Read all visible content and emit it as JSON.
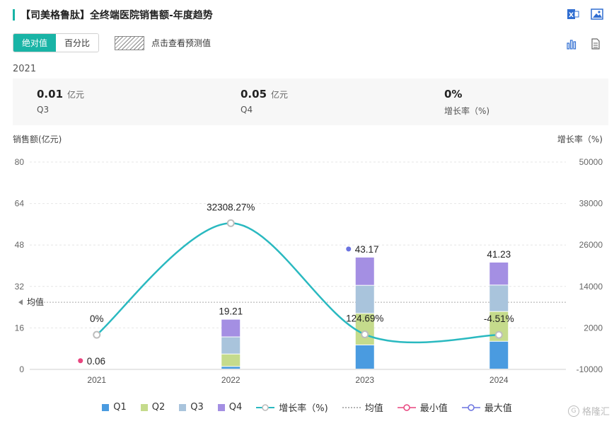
{
  "header": {
    "title": "【司美格鲁肽】全终端医院销售额-年度趋势"
  },
  "controls": {
    "absolute_label": "绝对值",
    "percent_label": "百分比",
    "forecast_label": "点击查看预测值"
  },
  "selected_year": "2021",
  "summary": {
    "value": {
      "number": "0.01",
      "unit": "亿元",
      "label": "Q3"
    },
    "quarter": {
      "number": "0.05",
      "unit": "亿元",
      "label": "Q4"
    },
    "growth": {
      "number": "0%",
      "label": "增长率（%)"
    }
  },
  "axis": {
    "left_title": "销售额(亿元)",
    "right_title": "增长率（%)"
  },
  "legend": {
    "q1": "Q1",
    "q2": "Q2",
    "q3": "Q3",
    "q4": "Q4",
    "growth": "增长率（%)",
    "avg": "均值",
    "min": "最小值",
    "max": "最大值"
  },
  "watermark": "格隆汇",
  "colors": {
    "accent": "#19b4a6",
    "q1": "#4a9be0",
    "q2": "#c5db8c",
    "q3": "#a9c4dc",
    "q4": "#a48fe3",
    "growth_line": "#2ab9c0",
    "min": "#e8457f",
    "max": "#6b73e0"
  },
  "chart_data": {
    "type": "bar",
    "categories": [
      "2021",
      "2022",
      "2023",
      "2024"
    ],
    "series": [
      {
        "name": "Q1",
        "values": [
          0.0,
          1.0,
          9.3,
          10.7
        ]
      },
      {
        "name": "Q2",
        "values": [
          0.0,
          4.8,
          12.2,
          11.5
        ]
      },
      {
        "name": "Q3",
        "values": [
          0.01,
          6.6,
          10.8,
          10.2
        ]
      },
      {
        "name": "Q4",
        "values": [
          0.05,
          6.81,
          10.87,
          8.83
        ]
      }
    ],
    "totals": [
      0.06,
      19.21,
      43.17,
      41.23
    ],
    "total_labels": [
      "0.06",
      "19.21",
      "43.17",
      "41.23"
    ],
    "growth": {
      "name": "增长率（%)",
      "values": [
        0,
        32308.27,
        124.69,
        -4.51
      ],
      "labels": [
        "0%",
        "32308.27%",
        "124.69%",
        "-4.51%"
      ]
    },
    "average": {
      "label": "均值",
      "value": 25.9
    },
    "min_index": 0,
    "max_index": 2,
    "ylim": [
      0,
      80
    ],
    "yticks": [
      0,
      16,
      32,
      48,
      64,
      80
    ],
    "y2lim": [
      -10000,
      50000
    ],
    "y2ticks_labels": [
      "-10000",
      "2000",
      "14000",
      "26000",
      "38000",
      "50000"
    ],
    "grid": true,
    "legend_position": "bottom"
  }
}
